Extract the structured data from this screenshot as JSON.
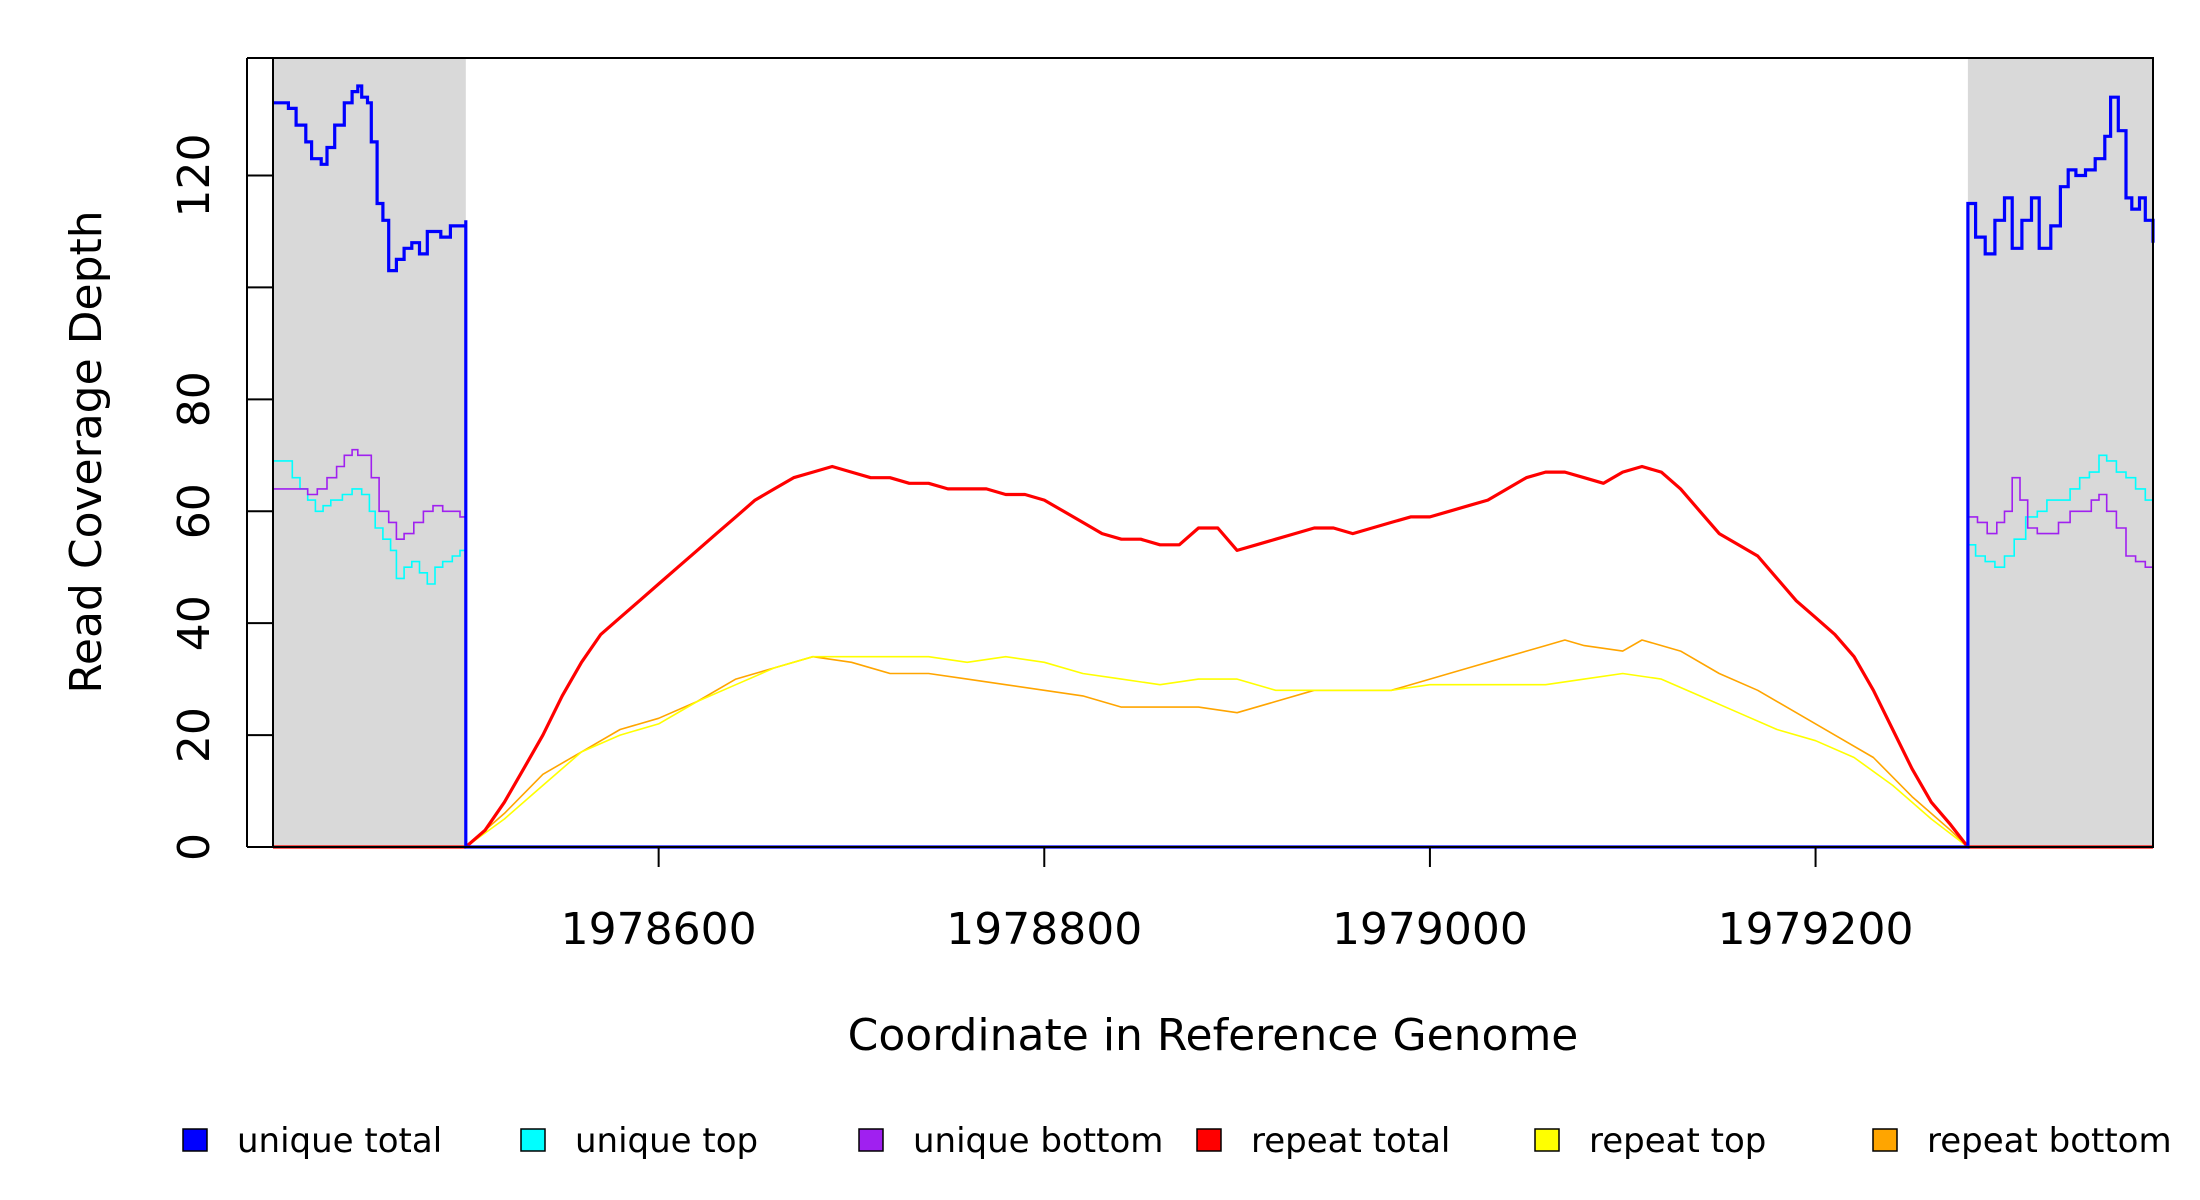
{
  "chart_data": {
    "type": "line",
    "xlabel": "Coordinate in Reference Genome",
    "ylabel": "Read Coverage Depth",
    "xlim": [
      1978400,
      1979375
    ],
    "ylim": [
      0,
      141
    ],
    "xticks": [
      1978600,
      1978800,
      1979000,
      1979200
    ],
    "yticks": [
      0,
      20,
      40,
      60,
      80,
      100,
      120
    ],
    "ytick_labels": [
      "0",
      "20",
      "40",
      "60",
      "80",
      "",
      "120"
    ],
    "shaded_regions": [
      {
        "from": 1978400,
        "to": 1978500,
        "color": "#d9d9d9"
      },
      {
        "from": 1979279,
        "to": 1979375,
        "color": "#d9d9d9"
      }
    ],
    "repeat_region": [
      1978500,
      1979279
    ],
    "legend_position": "bottom",
    "series": [
      {
        "name": "unique total",
        "color": "#0000ff",
        "left": [
          [
            1978400,
            133
          ],
          [
            1978408,
            132
          ],
          [
            1978412,
            129
          ],
          [
            1978417,
            126
          ],
          [
            1978420,
            123
          ],
          [
            1978425,
            122
          ],
          [
            1978428,
            125
          ],
          [
            1978432,
            129
          ],
          [
            1978437,
            133
          ],
          [
            1978441,
            135
          ],
          [
            1978444,
            136
          ],
          [
            1978446,
            134
          ],
          [
            1978449,
            133
          ],
          [
            1978451,
            126
          ],
          [
            1978454,
            115
          ],
          [
            1978457,
            112
          ],
          [
            1978460,
            103
          ],
          [
            1978464,
            105
          ],
          [
            1978468,
            107
          ],
          [
            1978472,
            108
          ],
          [
            1978476,
            106
          ],
          [
            1978480,
            110
          ],
          [
            1978487,
            109
          ],
          [
            1978492,
            111
          ],
          [
            1978497,
            111
          ],
          [
            1978500,
            112
          ]
        ],
        "right": [
          [
            1979279,
            115
          ],
          [
            1979283,
            109
          ],
          [
            1979288,
            106
          ],
          [
            1979293,
            112
          ],
          [
            1979298,
            116
          ],
          [
            1979302,
            107
          ],
          [
            1979307,
            112
          ],
          [
            1979312,
            116
          ],
          [
            1979316,
            107
          ],
          [
            1979322,
            111
          ],
          [
            1979327,
            118
          ],
          [
            1979331,
            121
          ],
          [
            1979335,
            120
          ],
          [
            1979340,
            121
          ],
          [
            1979345,
            123
          ],
          [
            1979350,
            127
          ],
          [
            1979353,
            134
          ],
          [
            1979357,
            128
          ],
          [
            1979361,
            116
          ],
          [
            1979364,
            114
          ],
          [
            1979368,
            116
          ],
          [
            1979371,
            112
          ],
          [
            1979375,
            108
          ]
        ]
      },
      {
        "name": "unique top",
        "color": "#00ffff",
        "left": [
          [
            1978400,
            69
          ],
          [
            1978405,
            69
          ],
          [
            1978410,
            66
          ],
          [
            1978414,
            64
          ],
          [
            1978418,
            62
          ],
          [
            1978422,
            60
          ],
          [
            1978426,
            61
          ],
          [
            1978430,
            62
          ],
          [
            1978436,
            63
          ],
          [
            1978441,
            64
          ],
          [
            1978446,
            63
          ],
          [
            1978450,
            60
          ],
          [
            1978453,
            57
          ],
          [
            1978457,
            55
          ],
          [
            1978461,
            53
          ],
          [
            1978464,
            48
          ],
          [
            1978468,
            50
          ],
          [
            1978472,
            51
          ],
          [
            1978476,
            49
          ],
          [
            1978480,
            47
          ],
          [
            1978484,
            50
          ],
          [
            1978488,
            51
          ],
          [
            1978493,
            52
          ],
          [
            1978497,
            53
          ],
          [
            1978500,
            54
          ]
        ],
        "right": [
          [
            1979279,
            54
          ],
          [
            1979283,
            52
          ],
          [
            1979288,
            51
          ],
          [
            1979293,
            50
          ],
          [
            1979298,
            52
          ],
          [
            1979303,
            55
          ],
          [
            1979309,
            59
          ],
          [
            1979315,
            60
          ],
          [
            1979320,
            62
          ],
          [
            1979326,
            62
          ],
          [
            1979332,
            64
          ],
          [
            1979337,
            66
          ],
          [
            1979342,
            67
          ],
          [
            1979347,
            70
          ],
          [
            1979351,
            69
          ],
          [
            1979356,
            67
          ],
          [
            1979361,
            66
          ],
          [
            1979366,
            64
          ],
          [
            1979371,
            62
          ],
          [
            1979375,
            60
          ]
        ]
      },
      {
        "name": "unique bottom",
        "color": "#a020f0",
        "left": [
          [
            1978400,
            64
          ],
          [
            1978408,
            64
          ],
          [
            1978412,
            64
          ],
          [
            1978418,
            63
          ],
          [
            1978423,
            64
          ],
          [
            1978428,
            66
          ],
          [
            1978433,
            68
          ],
          [
            1978437,
            70
          ],
          [
            1978441,
            71
          ],
          [
            1978444,
            70
          ],
          [
            1978448,
            70
          ],
          [
            1978451,
            66
          ],
          [
            1978455,
            60
          ],
          [
            1978460,
            58
          ],
          [
            1978464,
            55
          ],
          [
            1978468,
            56
          ],
          [
            1978473,
            58
          ],
          [
            1978478,
            60
          ],
          [
            1978483,
            61
          ],
          [
            1978488,
            60
          ],
          [
            1978493,
            60
          ],
          [
            1978497,
            59
          ],
          [
            1978500,
            59
          ]
        ],
        "right": [
          [
            1979279,
            59
          ],
          [
            1979284,
            58
          ],
          [
            1979289,
            56
          ],
          [
            1979294,
            58
          ],
          [
            1979298,
            60
          ],
          [
            1979302,
            66
          ],
          [
            1979306,
            62
          ],
          [
            1979310,
            57
          ],
          [
            1979315,
            56
          ],
          [
            1979320,
            56
          ],
          [
            1979326,
            58
          ],
          [
            1979332,
            60
          ],
          [
            1979338,
            60
          ],
          [
            1979343,
            62
          ],
          [
            1979347,
            63
          ],
          [
            1979351,
            60
          ],
          [
            1979356,
            57
          ],
          [
            1979361,
            52
          ],
          [
            1979366,
            51
          ],
          [
            1979371,
            50
          ],
          [
            1979375,
            49
          ]
        ]
      },
      {
        "name": "repeat total",
        "color": "#ff0000",
        "main": [
          [
            1978500,
            0
          ],
          [
            1978510,
            3
          ],
          [
            1978520,
            8
          ],
          [
            1978530,
            14
          ],
          [
            1978540,
            20
          ],
          [
            1978550,
            27
          ],
          [
            1978560,
            33
          ],
          [
            1978570,
            38
          ],
          [
            1978580,
            41
          ],
          [
            1978590,
            44
          ],
          [
            1978600,
            47
          ],
          [
            1978610,
            50
          ],
          [
            1978620,
            53
          ],
          [
            1978630,
            56
          ],
          [
            1978640,
            59
          ],
          [
            1978650,
            62
          ],
          [
            1978660,
            64
          ],
          [
            1978670,
            66
          ],
          [
            1978680,
            67
          ],
          [
            1978690,
            68
          ],
          [
            1978700,
            67
          ],
          [
            1978710,
            66
          ],
          [
            1978720,
            66
          ],
          [
            1978730,
            65
          ],
          [
            1978740,
            65
          ],
          [
            1978750,
            64
          ],
          [
            1978760,
            64
          ],
          [
            1978770,
            64
          ],
          [
            1978780,
            63
          ],
          [
            1978790,
            63
          ],
          [
            1978800,
            62
          ],
          [
            1978810,
            60
          ],
          [
            1978820,
            58
          ],
          [
            1978830,
            56
          ],
          [
            1978840,
            55
          ],
          [
            1978850,
            55
          ],
          [
            1978860,
            54
          ],
          [
            1978870,
            54
          ],
          [
            1978880,
            57
          ],
          [
            1978890,
            57
          ],
          [
            1978900,
            53
          ],
          [
            1978910,
            54
          ],
          [
            1978920,
            55
          ],
          [
            1978930,
            56
          ],
          [
            1978940,
            57
          ],
          [
            1978950,
            57
          ],
          [
            1978960,
            56
          ],
          [
            1978970,
            57
          ],
          [
            1978980,
            58
          ],
          [
            1978990,
            59
          ],
          [
            1979000,
            59
          ],
          [
            1979010,
            60
          ],
          [
            1979020,
            61
          ],
          [
            1979030,
            62
          ],
          [
            1979040,
            64
          ],
          [
            1979050,
            66
          ],
          [
            1979060,
            67
          ],
          [
            1979070,
            67
          ],
          [
            1979080,
            66
          ],
          [
            1979090,
            65
          ],
          [
            1979100,
            67
          ],
          [
            1979110,
            68
          ],
          [
            1979120,
            67
          ],
          [
            1979130,
            64
          ],
          [
            1979140,
            60
          ],
          [
            1979150,
            56
          ],
          [
            1979160,
            54
          ],
          [
            1979170,
            52
          ],
          [
            1979180,
            48
          ],
          [
            1979190,
            44
          ],
          [
            1979200,
            41
          ],
          [
            1979210,
            38
          ],
          [
            1979220,
            34
          ],
          [
            1979230,
            28
          ],
          [
            1979240,
            21
          ],
          [
            1979250,
            14
          ],
          [
            1979260,
            8
          ],
          [
            1979270,
            4
          ],
          [
            1979279,
            0
          ]
        ]
      },
      {
        "name": "repeat top",
        "color": "#ffff00",
        "main": [
          [
            1978500,
            0
          ],
          [
            1978520,
            5
          ],
          [
            1978540,
            11
          ],
          [
            1978560,
            17
          ],
          [
            1978580,
            20
          ],
          [
            1978600,
            22
          ],
          [
            1978620,
            26
          ],
          [
            1978640,
            29
          ],
          [
            1978660,
            32
          ],
          [
            1978680,
            34
          ],
          [
            1978700,
            34
          ],
          [
            1978720,
            34
          ],
          [
            1978740,
            34
          ],
          [
            1978760,
            33
          ],
          [
            1978780,
            34
          ],
          [
            1978800,
            33
          ],
          [
            1978820,
            31
          ],
          [
            1978840,
            30
          ],
          [
            1978860,
            29
          ],
          [
            1978880,
            30
          ],
          [
            1978900,
            30
          ],
          [
            1978920,
            28
          ],
          [
            1978940,
            28
          ],
          [
            1978960,
            28
          ],
          [
            1978980,
            28
          ],
          [
            1979000,
            29
          ],
          [
            1979020,
            29
          ],
          [
            1979040,
            29
          ],
          [
            1979060,
            29
          ],
          [
            1979080,
            30
          ],
          [
            1979100,
            31
          ],
          [
            1979120,
            30
          ],
          [
            1979140,
            27
          ],
          [
            1979160,
            24
          ],
          [
            1979180,
            21
          ],
          [
            1979200,
            19
          ],
          [
            1979220,
            16
          ],
          [
            1979240,
            11
          ],
          [
            1979260,
            5
          ],
          [
            1979279,
            0
          ]
        ]
      },
      {
        "name": "repeat bottom",
        "color": "#ffa500",
        "main": [
          [
            1978500,
            0
          ],
          [
            1978520,
            6
          ],
          [
            1978540,
            13
          ],
          [
            1978560,
            17
          ],
          [
            1978580,
            21
          ],
          [
            1978600,
            23
          ],
          [
            1978620,
            26
          ],
          [
            1978640,
            30
          ],
          [
            1978660,
            32
          ],
          [
            1978680,
            34
          ],
          [
            1978700,
            33
          ],
          [
            1978720,
            31
          ],
          [
            1978740,
            31
          ],
          [
            1978760,
            30
          ],
          [
            1978780,
            29
          ],
          [
            1978800,
            28
          ],
          [
            1978820,
            27
          ],
          [
            1978840,
            25
          ],
          [
            1978860,
            25
          ],
          [
            1978880,
            25
          ],
          [
            1978900,
            24
          ],
          [
            1978920,
            26
          ],
          [
            1978940,
            28
          ],
          [
            1978960,
            28
          ],
          [
            1978980,
            28
          ],
          [
            1979000,
            30
          ],
          [
            1979020,
            32
          ],
          [
            1979040,
            34
          ],
          [
            1979060,
            36
          ],
          [
            1979070,
            37
          ],
          [
            1979080,
            36
          ],
          [
            1979100,
            35
          ],
          [
            1979110,
            37
          ],
          [
            1979130,
            35
          ],
          [
            1979150,
            31
          ],
          [
            1979170,
            28
          ],
          [
            1979190,
            24
          ],
          [
            1979210,
            20
          ],
          [
            1979230,
            16
          ],
          [
            1979250,
            9
          ],
          [
            1979270,
            3
          ],
          [
            1979279,
            0
          ]
        ]
      }
    ]
  }
}
